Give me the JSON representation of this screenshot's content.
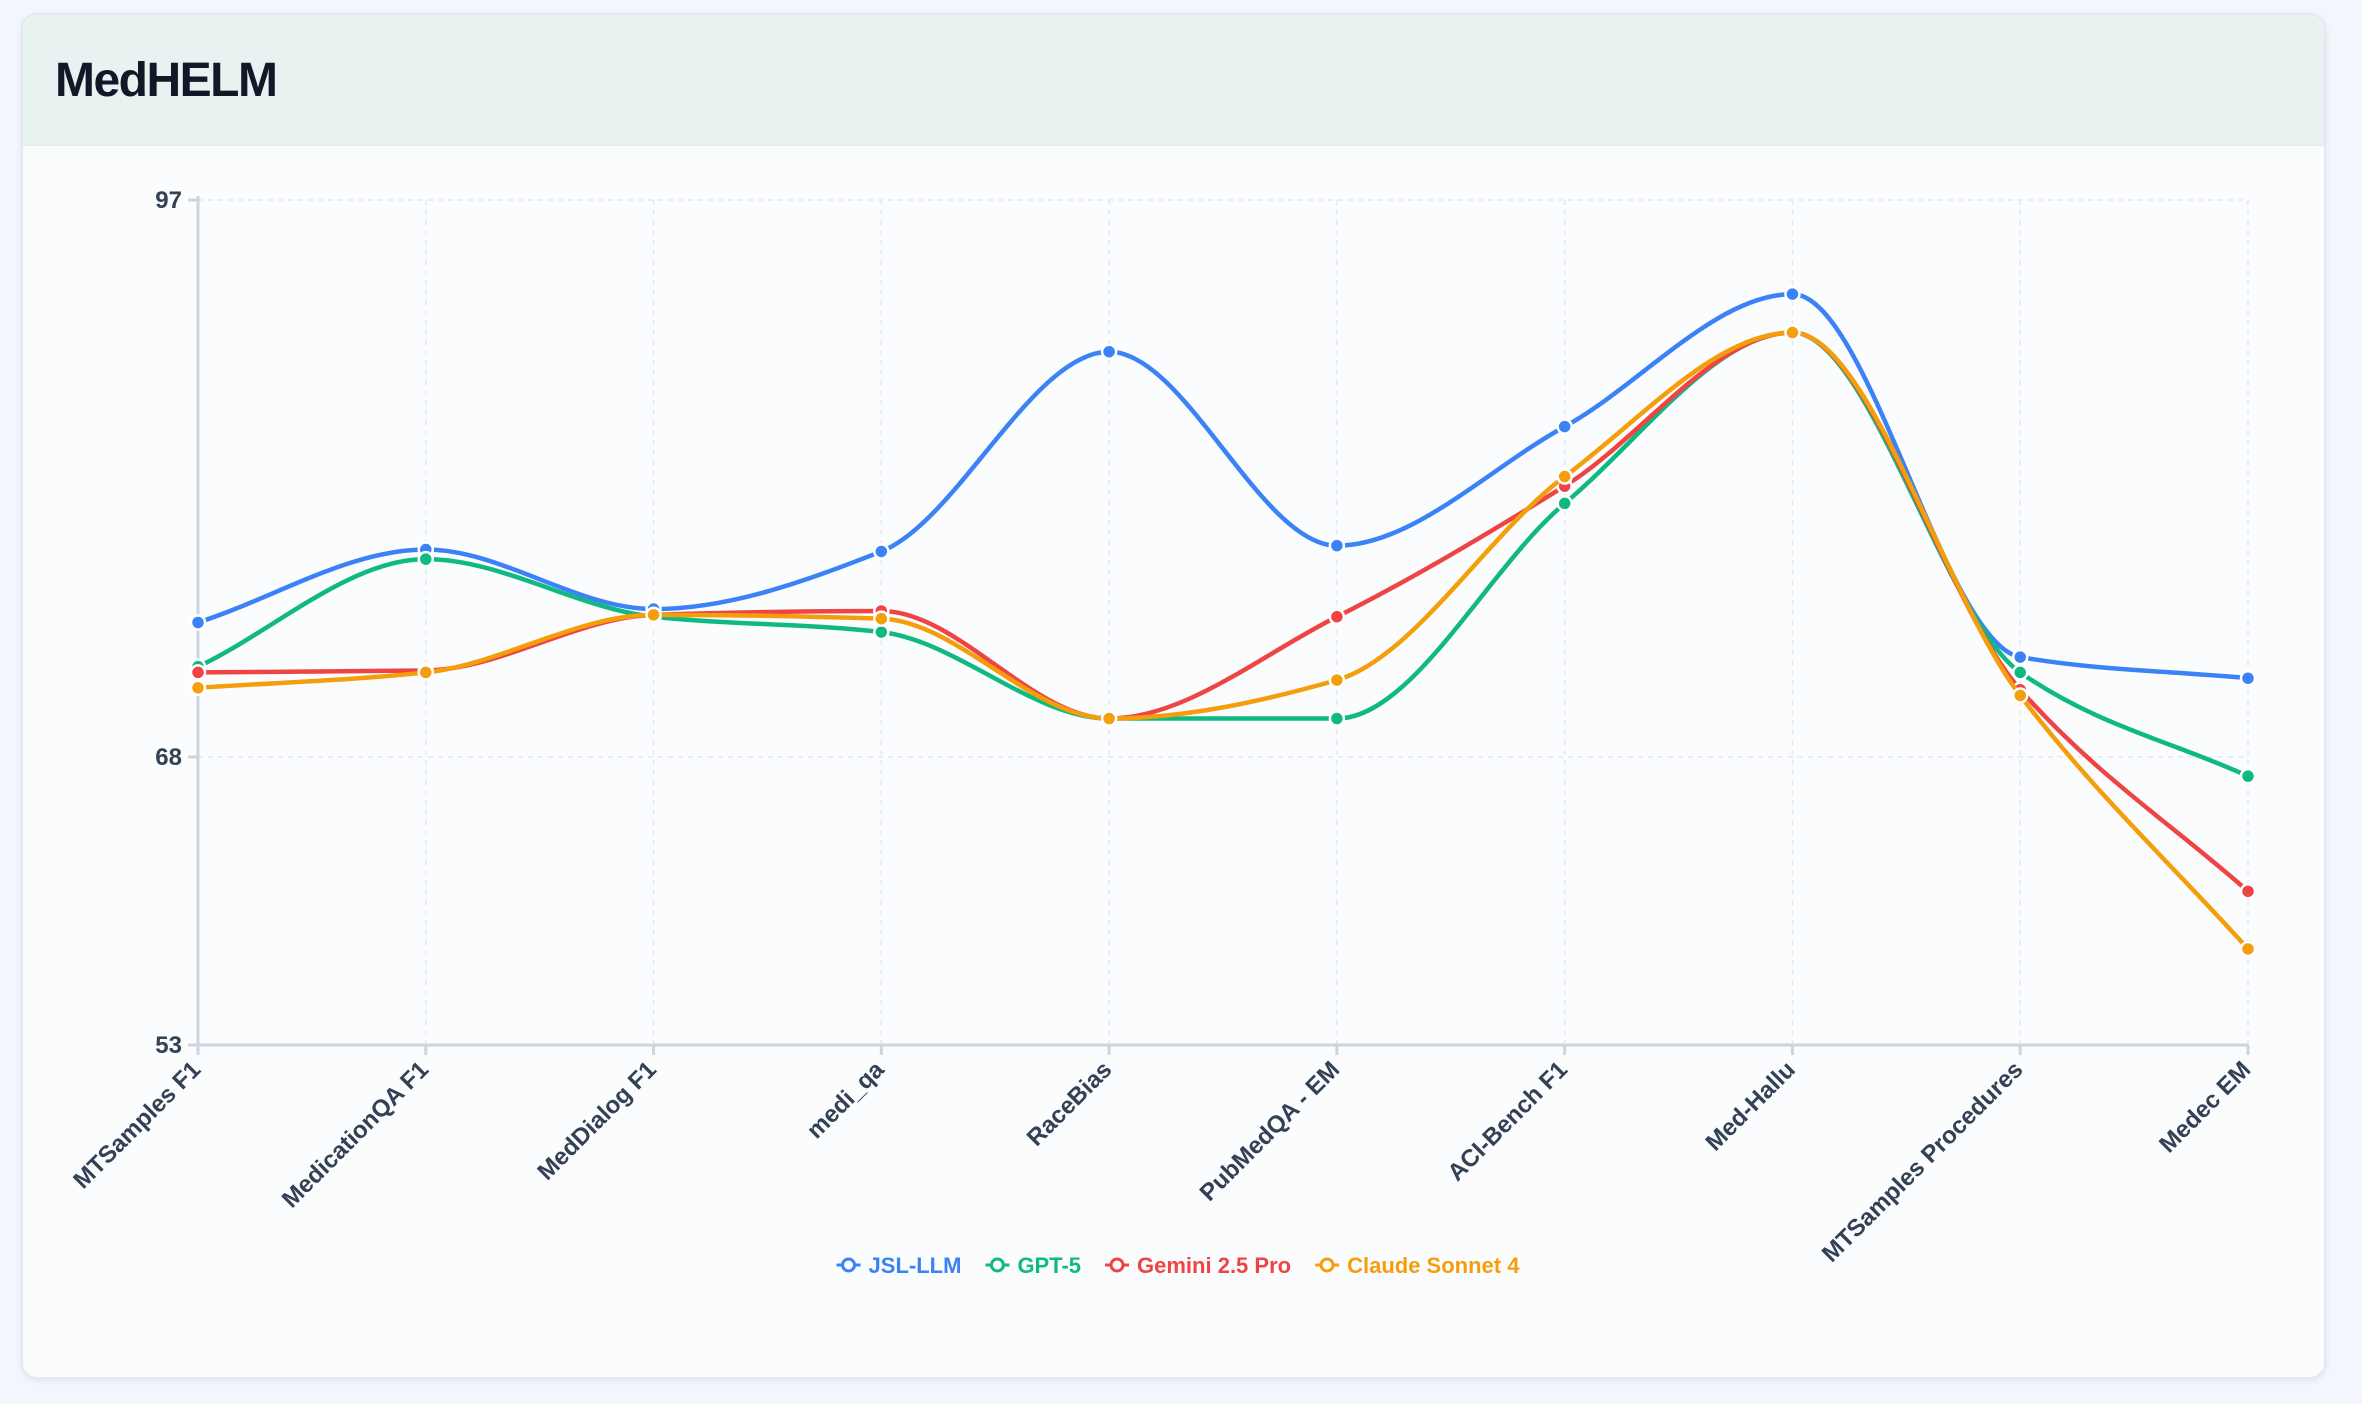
{
  "card": {
    "title": "MedHELM"
  },
  "chart_data": {
    "type": "line",
    "title": "MedHELM",
    "xlabel": "",
    "ylabel": "",
    "ylim": [
      53,
      97
    ],
    "yticks": [
      97,
      68,
      53
    ],
    "grid": true,
    "smooth": true,
    "legend_position": "bottom-center",
    "categories": [
      "MTSamples F1",
      "MedicationQA F1",
      "MedDialog F1",
      "medi_qa",
      "RaceBias",
      "PubMedQA - EM",
      "ACI-Bench F1",
      "Med-Hallu",
      "MTSamples Procedures",
      "Medec EM"
    ],
    "series": [
      {
        "name": "JSL-LLM",
        "color": "#3b82f6",
        "values": [
          75.0,
          78.8,
          75.7,
          78.7,
          89.1,
          79.0,
          85.2,
          92.1,
          73.2,
          72.1
        ]
      },
      {
        "name": "GPT-5",
        "color": "#10b981",
        "values": [
          72.7,
          78.3,
          75.3,
          74.5,
          70.0,
          70.0,
          81.2,
          90.1,
          72.4,
          67.0
        ]
      },
      {
        "name": "Gemini 2.5 Pro",
        "color": "#ef4444",
        "values": [
          72.4,
          72.5,
          75.4,
          75.6,
          70.0,
          75.3,
          82.1,
          90.1,
          71.5,
          61.0
        ]
      },
      {
        "name": "Claude Sonnet 4",
        "color": "#f59e0b",
        "values": [
          71.6,
          72.4,
          75.4,
          75.2,
          70.0,
          72.0,
          82.6,
          90.1,
          71.2,
          58.0
        ]
      }
    ]
  }
}
